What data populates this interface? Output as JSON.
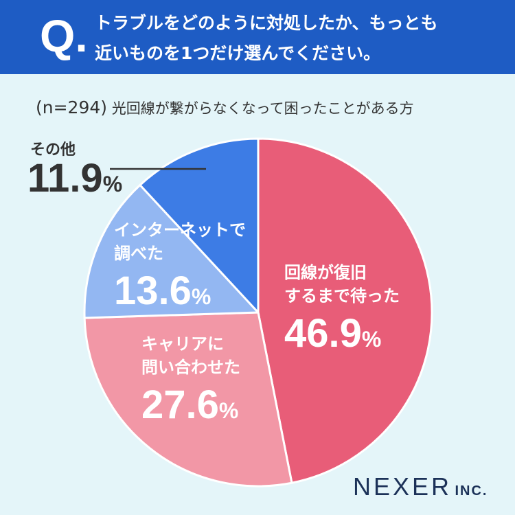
{
  "header": {
    "q_letter": "Q.",
    "question_line1": "トラブルをどのように対処したか、もっとも",
    "question_line2": "近いものを1つだけ選んでください。",
    "bg_color": "#1e5cc4"
  },
  "sample": {
    "n_label": "(n=294)",
    "description": "光回線が繋がらなくなって困ったことがある方"
  },
  "chart_data": {
    "type": "pie",
    "categories": [
      "回線が復旧するまで待った",
      "キャリアに問い合わせた",
      "インターネットで調べた",
      "その他"
    ],
    "values": [
      46.9,
      27.6,
      13.6,
      11.9
    ],
    "unit": "%",
    "colors": [
      "#e85d78",
      "#f297a6",
      "#93b7f2",
      "#3d7ce5"
    ],
    "slices": [
      {
        "label_line1": "回線が復旧",
        "label_line2": "するまで待った",
        "value_text": "46.9",
        "pct": "%"
      },
      {
        "label_line1": "キャリアに",
        "label_line2": "問い合わせた",
        "value_text": "27.6",
        "pct": "%"
      },
      {
        "label_line1": "インターネットで",
        "label_line2": "調べた",
        "value_text": "13.6",
        "pct": "%"
      },
      {
        "label_line1": "その他",
        "value_text": "11.9",
        "pct": "%"
      }
    ]
  },
  "logo": {
    "main": "NEXER",
    "sub": "INC."
  }
}
